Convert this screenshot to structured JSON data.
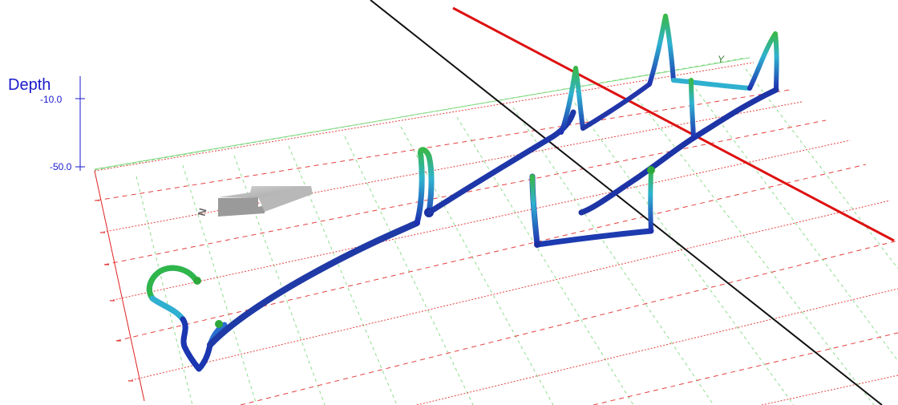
{
  "view": {
    "depth_axis": {
      "title": "Depth",
      "ticks": [
        "-10.0",
        "-50.0"
      ]
    },
    "y_axis_label": "Y",
    "north_label": "N"
  },
  "colors": {
    "background": "#ffffff",
    "depth_axis": "#1a1acc",
    "grid_red": "#e02020",
    "grid_green": "#7fd87f",
    "black_line": "#111111",
    "red_line": "#dd1111",
    "path_deep": "#1a2fa8",
    "path_mid": "#2fb0cf",
    "path_shallow": "#3ab53a",
    "compass_arrow": "#a0a0a0"
  }
}
